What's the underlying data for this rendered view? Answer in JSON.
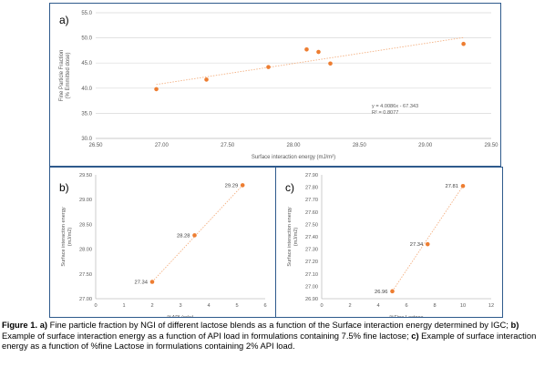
{
  "colors": {
    "point": "#ed7d31",
    "trend": "#f4b183",
    "grid": "#d9d9d9",
    "axis_text": "#595959",
    "border": "#2e5a8c"
  },
  "chart_data": [
    {
      "type": "scatter",
      "panel_label": "a)",
      "xlabel": "Surface interaction energy (mJ/m²)",
      "ylabel": [
        "Fine Particle Fraction",
        "(% Emmitted dose)"
      ],
      "xlim": [
        26.5,
        29.5
      ],
      "ylim": [
        30.0,
        55.0
      ],
      "xticks": [
        "26.50",
        "27.00",
        "27.50",
        "28.00",
        "28.50",
        "29.00",
        "29.50"
      ],
      "yticks": [
        "30.0",
        "35.0",
        "40.0",
        "45.0",
        "50.0",
        "55.0"
      ],
      "grid": "horizontal",
      "points": [
        {
          "x": 26.96,
          "y": 39.8
        },
        {
          "x": 27.34,
          "y": 41.7
        },
        {
          "x": 27.81,
          "y": 44.2
        },
        {
          "x": 28.1,
          "y": 47.7
        },
        {
          "x": 28.19,
          "y": 47.2
        },
        {
          "x": 28.28,
          "y": 44.9
        },
        {
          "x": 29.29,
          "y": 48.8
        }
      ],
      "trendline": {
        "equation": "y = 4.0086x - 67.343",
        "r2": "R² = 0.8077",
        "slope": 4.0086,
        "intercept": -67.343
      }
    },
    {
      "type": "scatter",
      "panel_label": "b)",
      "xlabel": "%API (w/w)",
      "ylabel": [
        "Surface interaction energy",
        "(mJ/m2)"
      ],
      "xlim": [
        0,
        6
      ],
      "ylim": [
        27.0,
        29.5
      ],
      "xticks": [
        "0",
        "1",
        "2",
        "3",
        "4",
        "5",
        "6"
      ],
      "yticks": [
        "27.00",
        "27.50",
        "28.00",
        "28.50",
        "29.00",
        "29.50"
      ],
      "grid": "none",
      "points": [
        {
          "x": 2.0,
          "y": 27.34,
          "label": "27.34"
        },
        {
          "x": 3.5,
          "y": 28.28,
          "label": "28.28"
        },
        {
          "x": 5.2,
          "y": 29.29,
          "label": "29.29"
        }
      ]
    },
    {
      "type": "scatter",
      "panel_label": "c)",
      "xlabel": "%Fine Lactose",
      "ylabel": [
        "Surface interaction energy",
        "(mJ/m2)"
      ],
      "xlim": [
        0,
        12
      ],
      "ylim": [
        26.9,
        27.9
      ],
      "xticks": [
        "0",
        "2",
        "4",
        "6",
        "8",
        "10",
        "12"
      ],
      "yticks": [
        "26.90",
        "27.00",
        "27.10",
        "27.20",
        "27.30",
        "27.40",
        "27.50",
        "27.60",
        "27.70",
        "27.80",
        "27.90"
      ],
      "grid": "none",
      "points": [
        {
          "x": 5.0,
          "y": 26.96,
          "label": "26.96"
        },
        {
          "x": 7.5,
          "y": 27.34,
          "label": "27.34"
        },
        {
          "x": 10.0,
          "y": 27.81,
          "label": "27.81"
        }
      ]
    }
  ],
  "caption": {
    "fig": "Figure 1.",
    "a_tag": "a)",
    "a_text": " Fine particle fraction by NGI of different lactose blends as a function of the Surface interaction energy determined by IGC;",
    "b_tag": "b)",
    "b_text": " Example of surface interaction energy as a function of API load in formulations containing 7.5% fine lactose;",
    "c_tag": "c)",
    "c_text": " Example of surface interaction energy as a function of %fine Lactose in formulations containing 2% API load."
  }
}
